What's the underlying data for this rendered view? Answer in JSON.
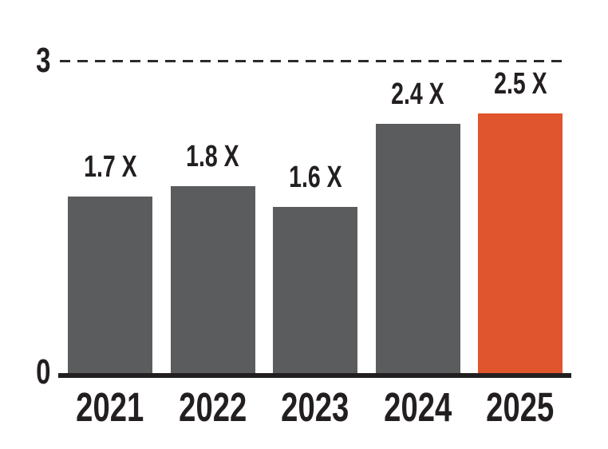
{
  "chart_data": {
    "type": "bar",
    "categories": [
      "2021",
      "2022",
      "2023",
      "2024",
      "2025"
    ],
    "values": [
      1.7,
      1.8,
      1.6,
      2.4,
      2.5
    ],
    "value_labels": [
      "1.7 X",
      "1.8 X",
      "1.6 X",
      "2.4 X",
      "2.5 X"
    ],
    "title": "",
    "xlabel": "",
    "ylabel": "",
    "ylim": [
      0,
      3
    ],
    "ytick_top": "3",
    "ytick_bottom": "0",
    "gridline": {
      "y": 3,
      "style": "dashed"
    },
    "legend": "none",
    "highlight_index": 4,
    "colors": {
      "bar": "#5B5C5E",
      "highlight": "#E0542E",
      "text": "#231F20",
      "axis": "#231F20"
    }
  }
}
